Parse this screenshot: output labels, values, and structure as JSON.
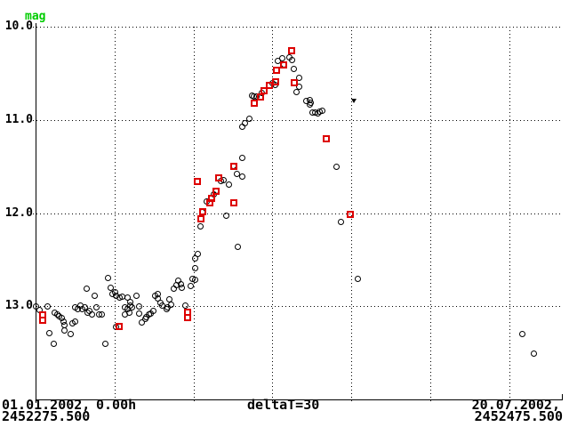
{
  "window": {
    "background": "#ffffff"
  },
  "chart_data": {
    "type": "scatter",
    "title": "",
    "ylabel": "mag",
    "ylabel_color": "#00cc00",
    "grid": true,
    "x_axis": {
      "start_label_date": "01.01.2002,",
      "start_label_time": "0.00h",
      "start_label_jd": "2452275.500",
      "center_label": "deltaT=30",
      "end_label_date": "20.07.2002,",
      "end_label_jd": "2452475.500",
      "range_days": [
        0,
        200
      ],
      "grid_step_days": 30
    },
    "y_axis": {
      "tick_labels": [
        "10.0",
        "11.0",
        "12.0",
        "13.0"
      ],
      "ticks": [
        10,
        11,
        12,
        13
      ],
      "range_mag": [
        10,
        14
      ],
      "inverted_magnitude_scale": true
    },
    "series": [
      {
        "name": "visual-observations-circles",
        "marker": "open-circle",
        "color": "#000000",
        "points": [
          [
            0.3,
            13.0
          ],
          [
            1.4,
            13.04
          ],
          [
            4.4,
            13.0
          ],
          [
            5.4,
            13.29
          ],
          [
            6.8,
            13.4
          ],
          [
            7.4,
            13.07
          ],
          [
            8.4,
            13.09
          ],
          [
            9.1,
            13.11
          ],
          [
            10.1,
            13.13
          ],
          [
            10.8,
            13.16
          ],
          [
            11.1,
            13.2
          ],
          [
            11.1,
            13.26
          ],
          [
            13.2,
            13.3
          ],
          [
            13.9,
            13.18
          ],
          [
            15.2,
            13.16
          ],
          [
            14.9,
            13.01
          ],
          [
            15.9,
            13.03
          ],
          [
            16.9,
            12.99
          ],
          [
            17.9,
            13.03
          ],
          [
            18.6,
            13.01
          ],
          [
            19.3,
            12.81
          ],
          [
            19.9,
            13.07
          ],
          [
            20.6,
            13.05
          ],
          [
            21.6,
            13.09
          ],
          [
            22.6,
            12.89
          ],
          [
            23.3,
            13.01
          ],
          [
            24.3,
            13.09
          ],
          [
            25.3,
            13.09
          ],
          [
            26.4,
            13.4
          ],
          [
            27.4,
            12.7
          ],
          [
            28.4,
            12.8
          ],
          [
            29.1,
            12.87
          ],
          [
            30.1,
            12.85
          ],
          [
            30.7,
            12.89
          ],
          [
            31.8,
            12.91
          ],
          [
            32.8,
            12.9
          ],
          [
            30.7,
            13.22
          ],
          [
            33.8,
            13.01
          ],
          [
            34.8,
            13.03
          ],
          [
            35.5,
            13.07
          ],
          [
            33.8,
            13.09
          ],
          [
            36.1,
            12.95
          ],
          [
            34.8,
            12.91
          ],
          [
            36.1,
            12.99
          ],
          [
            36.8,
            13.01
          ],
          [
            38.2,
            12.89
          ],
          [
            39.2,
            13.0
          ],
          [
            39.5,
            13.08
          ],
          [
            40.5,
            13.17
          ],
          [
            41.6,
            13.14
          ],
          [
            42.2,
            13.12
          ],
          [
            43.2,
            13.09
          ],
          [
            43.9,
            13.08
          ],
          [
            44.6,
            13.05
          ],
          [
            45.3,
            12.89
          ],
          [
            46.3,
            12.87
          ],
          [
            46.6,
            12.92
          ],
          [
            47.3,
            12.96
          ],
          [
            48.0,
            12.99
          ],
          [
            49.7,
            13.03
          ],
          [
            50.3,
            13.01
          ],
          [
            51.0,
            12.93
          ],
          [
            51.4,
            12.98
          ],
          [
            52.4,
            12.81
          ],
          [
            53.4,
            12.77
          ],
          [
            54.1,
            12.73
          ],
          [
            55.1,
            12.76
          ],
          [
            55.7,
            12.8
          ],
          [
            56.8,
            12.99
          ],
          [
            58.8,
            12.78
          ],
          [
            59.5,
            12.71
          ],
          [
            60.5,
            12.59
          ],
          [
            60.5,
            12.72
          ],
          [
            60.8,
            12.49
          ],
          [
            61.5,
            12.44
          ],
          [
            62.5,
            12.14
          ],
          [
            63.2,
            11.99
          ],
          [
            64.9,
            11.88
          ],
          [
            67.9,
            11.8
          ],
          [
            68.9,
            11.76
          ],
          [
            70.3,
            11.66
          ],
          [
            71.6,
            11.65
          ],
          [
            72.3,
            12.03
          ],
          [
            73.6,
            11.69
          ],
          [
            75.3,
            11.49
          ],
          [
            76.4,
            11.58
          ],
          [
            77.0,
            12.36
          ],
          [
            78.4,
            11.61
          ],
          [
            78.4,
            11.41
          ],
          [
            78.4,
            11.07
          ],
          [
            79.7,
            11.04
          ],
          [
            81.1,
            10.99
          ],
          [
            82.1,
            10.74
          ],
          [
            82.8,
            10.75
          ],
          [
            83.8,
            10.75
          ],
          [
            86.1,
            10.71
          ],
          [
            90.2,
            10.61
          ],
          [
            90.9,
            10.63
          ],
          [
            92.2,
            10.37
          ],
          [
            93.6,
            10.34
          ],
          [
            94.3,
            10.41
          ],
          [
            96.6,
            10.33
          ],
          [
            97.6,
            10.36
          ],
          [
            98.3,
            10.45
          ],
          [
            99.3,
            10.7
          ],
          [
            100.0,
            10.64
          ],
          [
            100.3,
            10.55
          ],
          [
            103.0,
            10.8
          ],
          [
            104.1,
            10.79
          ],
          [
            104.4,
            10.82
          ],
          [
            104.1,
            10.84
          ],
          [
            105.1,
            10.92
          ],
          [
            106.1,
            10.92
          ],
          [
            107.1,
            10.93
          ],
          [
            108.1,
            10.91
          ],
          [
            109.1,
            10.9
          ],
          [
            114.2,
            11.5
          ],
          [
            115.9,
            12.1
          ],
          [
            122.6,
            12.71
          ],
          [
            185.1,
            13.3
          ],
          [
            189.5,
            13.51
          ]
        ]
      },
      {
        "name": "ccd-observations-squares",
        "marker": "open-square",
        "color": "#dd0000",
        "points": [
          [
            2.7,
            13.09
          ],
          [
            2.7,
            13.15
          ],
          [
            31.8,
            13.22
          ],
          [
            57.8,
            13.06
          ],
          [
            57.8,
            13.12
          ],
          [
            61.5,
            11.66
          ],
          [
            62.8,
            12.06
          ],
          [
            63.5,
            11.99
          ],
          [
            66.2,
            11.89
          ],
          [
            66.9,
            11.84
          ],
          [
            68.6,
            11.77
          ],
          [
            69.6,
            11.62
          ],
          [
            75.3,
            11.5
          ],
          [
            75.3,
            11.89
          ],
          [
            83.1,
            10.82
          ],
          [
            85.5,
            10.75
          ],
          [
            86.8,
            10.69
          ],
          [
            88.9,
            10.63
          ],
          [
            91.2,
            10.59
          ],
          [
            91.6,
            10.47
          ],
          [
            94.3,
            10.41
          ],
          [
            97.3,
            10.26
          ],
          [
            98.3,
            10.6
          ],
          [
            110.5,
            11.2
          ],
          [
            119.6,
            12.01
          ]
        ]
      },
      {
        "name": "fainter-than-triangle",
        "marker": "filled-triangle-down",
        "color": "#000000",
        "points": [
          [
            121.0,
            10.8
          ]
        ]
      }
    ]
  }
}
